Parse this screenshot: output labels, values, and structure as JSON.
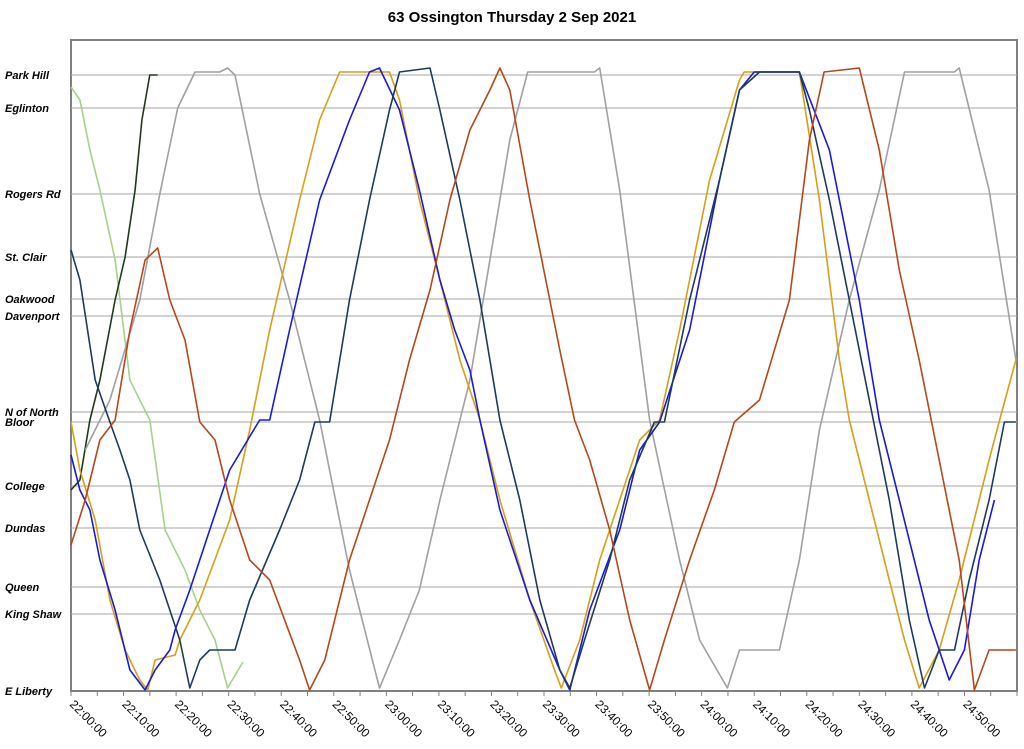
{
  "chart_data": {
    "type": "line",
    "title": "63 Ossington Thursday 2 Sep 2021",
    "xlabel": "",
    "ylabel": "",
    "x_unit": "minutes after 22:00:00",
    "y_unit": "distance from E Liberty (approx. units)",
    "xlim": [
      0,
      180
    ],
    "ylim": [
      0,
      6.51
    ],
    "grid": "horizontal at stations",
    "legend": "none",
    "x_ticks": [
      {
        "value": 0,
        "label": "22:00:00"
      },
      {
        "value": 10,
        "label": "22:10:00"
      },
      {
        "value": 20,
        "label": "22:20:00"
      },
      {
        "value": 30,
        "label": "22:30:00"
      },
      {
        "value": 40,
        "label": "22:40:00"
      },
      {
        "value": 50,
        "label": "22:50:00"
      },
      {
        "value": 60,
        "label": "23:00:00"
      },
      {
        "value": 70,
        "label": "23:10:00"
      },
      {
        "value": 80,
        "label": "23:20:00"
      },
      {
        "value": 90,
        "label": "23:30:00"
      },
      {
        "value": 100,
        "label": "23:40:00"
      },
      {
        "value": 110,
        "label": "23:50:00"
      },
      {
        "value": 120,
        "label": "24:00:00"
      },
      {
        "value": 130,
        "label": "24:10:00"
      },
      {
        "value": 140,
        "label": "24:20:00"
      },
      {
        "value": 150,
        "label": "24:30:00"
      },
      {
        "value": 160,
        "label": "24:40:00"
      },
      {
        "value": 170,
        "label": "24:50:00"
      }
    ],
    "stations": [
      {
        "name": "Park Hill",
        "pos": 6.16
      },
      {
        "name": "Eglinton",
        "pos": 5.83
      },
      {
        "name": "Rogers Rd",
        "pos": 4.97
      },
      {
        "name": "St. Clair",
        "pos": 4.34
      },
      {
        "name": "Oakwood",
        "pos": 3.92
      },
      {
        "name": "Davenport",
        "pos": 3.75
      },
      {
        "name": "N of North",
        "pos": 2.79
      },
      {
        "name": "Bloor",
        "pos": 2.69
      },
      {
        "name": "College",
        "pos": 2.05
      },
      {
        "name": "Dundas",
        "pos": 1.63
      },
      {
        "name": "Queen",
        "pos": 1.04
      },
      {
        "name": "King Shaw",
        "pos": 0.77
      },
      {
        "name": "E Liberty",
        "pos": 0.0
      }
    ],
    "series": [
      {
        "name": "vehicle-light-green",
        "color": "#a8d08d",
        "points": [
          [
            0,
            6.04
          ],
          [
            1.7,
            5.91
          ],
          [
            3.6,
            5.41
          ],
          [
            5.5,
            5.01
          ],
          [
            8.4,
            4.31
          ],
          [
            11.2,
            3.11
          ],
          [
            15.0,
            2.71
          ],
          [
            17.9,
            1.61
          ],
          [
            21.7,
            1.21
          ],
          [
            24.5,
            0.81
          ],
          [
            27.4,
            0.51
          ],
          [
            29.8,
            0.03
          ],
          [
            32.7,
            0.29
          ]
        ]
      },
      {
        "name": "vehicle-dark-green",
        "color": "#1e3a1e",
        "points": [
          [
            0,
            2.01
          ],
          [
            1.7,
            2.11
          ],
          [
            3.6,
            2.71
          ],
          [
            5.5,
            3.11
          ],
          [
            8.4,
            3.91
          ],
          [
            10.3,
            4.34
          ],
          [
            12.2,
            5.01
          ],
          [
            13.5,
            5.71
          ],
          [
            15.0,
            6.16
          ],
          [
            16.5,
            6.16
          ]
        ]
      },
      {
        "name": "vehicle-grey",
        "color": "#a0a0a0",
        "points": [
          [
            2.7,
            2.41
          ],
          [
            7.4,
            2.91
          ],
          [
            13.1,
            3.91
          ],
          [
            16.9,
            4.97
          ],
          [
            20.3,
            5.83
          ],
          [
            23.6,
            6.19
          ],
          [
            28.3,
            6.19
          ],
          [
            29.8,
            6.23
          ],
          [
            31.2,
            6.16
          ],
          [
            35.9,
            4.97
          ],
          [
            41.6,
            3.91
          ],
          [
            47.3,
            2.71
          ],
          [
            53.0,
            1.21
          ],
          [
            58.7,
            0.03
          ],
          [
            62.5,
            0.51
          ],
          [
            66.3,
            1.01
          ],
          [
            70.2,
            1.91
          ],
          [
            75.9,
            3.11
          ],
          [
            79.7,
            4.31
          ],
          [
            83.5,
            5.51
          ],
          [
            86.9,
            6.19
          ],
          [
            99.6,
            6.19
          ],
          [
            100.6,
            6.23
          ],
          [
            104.4,
            5.01
          ],
          [
            110.1,
            2.71
          ],
          [
            115.8,
            1.31
          ],
          [
            119.6,
            0.51
          ],
          [
            124.9,
            0.03
          ],
          [
            127.2,
            0.41
          ],
          [
            134.8,
            0.41
          ],
          [
            138.6,
            1.31
          ],
          [
            142.4,
            2.61
          ],
          [
            148.1,
            3.91
          ],
          [
            153.8,
            5.01
          ],
          [
            158.6,
            6.19
          ],
          [
            168.1,
            6.19
          ],
          [
            169.0,
            6.23
          ],
          [
            174.7,
            5.01
          ],
          [
            179.8,
            3.31
          ]
        ]
      },
      {
        "name": "vehicle-gold",
        "color": "#d4a017",
        "points": [
          [
            0,
            2.69
          ],
          [
            1.7,
            2.21
          ],
          [
            4.6,
            1.71
          ],
          [
            7.4,
            0.91
          ],
          [
            10.3,
            0.41
          ],
          [
            13.1,
            0.11
          ],
          [
            14.6,
            0.01
          ],
          [
            16.0,
            0.31
          ],
          [
            19.8,
            0.36
          ],
          [
            20.7,
            0.51
          ],
          [
            24.5,
            0.91
          ],
          [
            30.2,
            1.71
          ],
          [
            34.0,
            2.61
          ],
          [
            37.8,
            3.61
          ],
          [
            43.5,
            4.91
          ],
          [
            47.3,
            5.71
          ],
          [
            51.1,
            6.19
          ],
          [
            60.6,
            6.19
          ],
          [
            62.5,
            5.91
          ],
          [
            66.3,
            4.91
          ],
          [
            70.2,
            4.11
          ],
          [
            74.0,
            3.31
          ],
          [
            77.8,
            2.71
          ],
          [
            81.6,
            1.91
          ],
          [
            87.3,
            0.91
          ],
          [
            92.0,
            0.21
          ],
          [
            93.3,
            0.03
          ],
          [
            96.8,
            0.51
          ],
          [
            100.6,
            1.31
          ],
          [
            104.4,
            1.91
          ],
          [
            108.2,
            2.51
          ],
          [
            112.0,
            2.71
          ],
          [
            115.8,
            3.61
          ],
          [
            121.5,
            5.11
          ],
          [
            127.2,
            6.11
          ],
          [
            128.1,
            6.19
          ],
          [
            138.6,
            6.19
          ],
          [
            142.4,
            4.91
          ],
          [
            146.2,
            3.31
          ],
          [
            148.1,
            2.71
          ],
          [
            151.9,
            1.91
          ],
          [
            155.7,
            1.11
          ],
          [
            158.6,
            0.51
          ],
          [
            161.4,
            0.03
          ],
          [
            165.2,
            0.41
          ],
          [
            169.0,
            1.11
          ],
          [
            174.7,
            2.31
          ],
          [
            176.6,
            2.69
          ],
          [
            179.8,
            3.31
          ]
        ]
      },
      {
        "name": "vehicle-blue",
        "color": "#1a1adb",
        "points": [
          [
            0,
            2.36
          ],
          [
            1.7,
            2.01
          ],
          [
            3.6,
            1.81
          ],
          [
            5.5,
            1.31
          ],
          [
            8.4,
            0.81
          ],
          [
            11.2,
            0.21
          ],
          [
            14.1,
            0.01
          ],
          [
            16.0,
            0.21
          ],
          [
            18.8,
            0.41
          ],
          [
            19.8,
            0.61
          ],
          [
            22.6,
            1.01
          ],
          [
            26.4,
            1.61
          ],
          [
            30.2,
            2.21
          ],
          [
            35.9,
            2.71
          ],
          [
            37.8,
            2.71
          ],
          [
            41.6,
            3.61
          ],
          [
            47.3,
            4.91
          ],
          [
            53.0,
            5.71
          ],
          [
            56.8,
            6.19
          ],
          [
            58.7,
            6.23
          ],
          [
            62.5,
            5.81
          ],
          [
            66.3,
            5.01
          ],
          [
            70.2,
            4.11
          ],
          [
            73.0,
            3.61
          ],
          [
            75.9,
            3.21
          ],
          [
            77.8,
            2.71
          ],
          [
            81.6,
            1.81
          ],
          [
            87.3,
            0.91
          ],
          [
            93.0,
            0.21
          ],
          [
            94.9,
            0.01
          ],
          [
            98.7,
            0.81
          ],
          [
            104.4,
            1.61
          ],
          [
            108.2,
            2.41
          ],
          [
            112.0,
            2.69
          ],
          [
            117.7,
            3.61
          ],
          [
            123.4,
            5.11
          ],
          [
            127.2,
            6.01
          ],
          [
            130.0,
            6.19
          ],
          [
            138.6,
            6.19
          ],
          [
            144.3,
            5.41
          ],
          [
            150.0,
            3.91
          ],
          [
            153.8,
            2.71
          ],
          [
            157.6,
            1.91
          ],
          [
            163.3,
            0.71
          ],
          [
            167.1,
            0.11
          ],
          [
            170.0,
            0.41
          ],
          [
            172.8,
            1.31
          ],
          [
            175.7,
            1.91
          ]
        ]
      },
      {
        "name": "vehicle-navy",
        "color": "#1f3a5f",
        "points": [
          [
            0,
            4.41
          ],
          [
            1.7,
            4.11
          ],
          [
            4.6,
            3.11
          ],
          [
            7.4,
            2.69
          ],
          [
            9.3,
            2.41
          ],
          [
            11.2,
            2.11
          ],
          [
            13.1,
            1.61
          ],
          [
            16.9,
            1.11
          ],
          [
            20.7,
            0.51
          ],
          [
            22.6,
            0.03
          ],
          [
            24.5,
            0.31
          ],
          [
            26.4,
            0.41
          ],
          [
            31.2,
            0.41
          ],
          [
            34.0,
            0.91
          ],
          [
            39.7,
            1.61
          ],
          [
            43.5,
            2.11
          ],
          [
            46.4,
            2.69
          ],
          [
            49.2,
            2.69
          ],
          [
            53.0,
            3.91
          ],
          [
            56.8,
            4.91
          ],
          [
            60.6,
            5.81
          ],
          [
            62.5,
            6.19
          ],
          [
            68.3,
            6.23
          ],
          [
            70.2,
            5.81
          ],
          [
            74.0,
            4.91
          ],
          [
            77.8,
            3.91
          ],
          [
            81.6,
            2.71
          ],
          [
            85.4,
            1.91
          ],
          [
            89.2,
            0.91
          ],
          [
            93.0,
            0.21
          ],
          [
            94.9,
            0.03
          ],
          [
            97.7,
            0.51
          ],
          [
            102.5,
            1.31
          ],
          [
            106.3,
            2.11
          ],
          [
            111.0,
            2.69
          ],
          [
            112.9,
            2.69
          ],
          [
            117.7,
            3.91
          ],
          [
            123.4,
            5.11
          ],
          [
            127.2,
            6.01
          ],
          [
            131.0,
            6.19
          ],
          [
            138.6,
            6.19
          ],
          [
            140.5,
            5.81
          ],
          [
            144.3,
            4.91
          ],
          [
            148.1,
            3.91
          ],
          [
            151.9,
            2.91
          ],
          [
            155.7,
            1.91
          ],
          [
            159.5,
            0.71
          ],
          [
            162.4,
            0.03
          ],
          [
            165.2,
            0.41
          ],
          [
            168.1,
            0.41
          ],
          [
            170.9,
            1.11
          ],
          [
            174.7,
            1.91
          ],
          [
            177.6,
            2.69
          ],
          [
            179.8,
            2.69
          ]
        ]
      },
      {
        "name": "vehicle-rust",
        "color": "#b5471b",
        "points": [
          [
            0,
            1.46
          ],
          [
            2.7,
            1.91
          ],
          [
            5.5,
            2.51
          ],
          [
            8.4,
            2.71
          ],
          [
            11.2,
            3.61
          ],
          [
            14.1,
            4.31
          ],
          [
            16.5,
            4.43
          ],
          [
            18.8,
            3.91
          ],
          [
            21.7,
            3.51
          ],
          [
            24.5,
            2.69
          ],
          [
            27.4,
            2.51
          ],
          [
            30.2,
            1.91
          ],
          [
            34.0,
            1.31
          ],
          [
            37.8,
            1.11
          ],
          [
            43.5,
            0.31
          ],
          [
            45.4,
            0.01
          ],
          [
            48.3,
            0.31
          ],
          [
            53.0,
            1.31
          ],
          [
            56.8,
            1.91
          ],
          [
            60.6,
            2.51
          ],
          [
            64.4,
            3.31
          ],
          [
            68.3,
            4.01
          ],
          [
            72.1,
            4.91
          ],
          [
            75.9,
            5.61
          ],
          [
            79.7,
            6.01
          ],
          [
            81.6,
            6.23
          ],
          [
            83.5,
            6.01
          ],
          [
            87.3,
            4.91
          ],
          [
            93.0,
            3.41
          ],
          [
            95.8,
            2.71
          ],
          [
            98.7,
            2.31
          ],
          [
            102.5,
            1.61
          ],
          [
            106.3,
            0.71
          ],
          [
            110.1,
            0.01
          ],
          [
            112.9,
            0.51
          ],
          [
            117.7,
            1.31
          ],
          [
            122.4,
            2.01
          ],
          [
            126.2,
            2.69
          ],
          [
            131.0,
            2.91
          ],
          [
            136.7,
            3.91
          ],
          [
            140.5,
            5.51
          ],
          [
            143.3,
            6.19
          ],
          [
            150.0,
            6.23
          ],
          [
            153.8,
            5.41
          ],
          [
            157.6,
            4.21
          ],
          [
            161.4,
            3.31
          ],
          [
            165.2,
            2.31
          ],
          [
            169.0,
            1.31
          ],
          [
            171.9,
            0.01
          ],
          [
            174.7,
            0.41
          ],
          [
            179.8,
            0.41
          ]
        ]
      }
    ]
  }
}
